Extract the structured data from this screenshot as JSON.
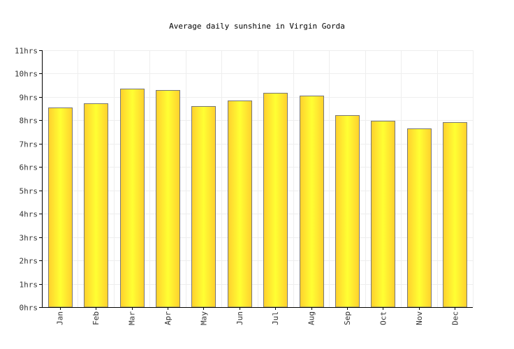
{
  "chart_data": {
    "type": "bar",
    "title": "Average daily sunshine in Virgin Gorda",
    "xlabel": "",
    "ylabel": "",
    "categories": [
      "Jan",
      "Feb",
      "Mar",
      "Apr",
      "May",
      "Jun",
      "Jul",
      "Aug",
      "Sep",
      "Oct",
      "Nov",
      "Dec"
    ],
    "series": [
      {
        "values": [
          8.55,
          8.72,
          9.35,
          9.3,
          8.6,
          8.85,
          9.18,
          9.05,
          8.22,
          7.98,
          7.65,
          7.92
        ]
      }
    ],
    "ylim": [
      0,
      11
    ],
    "yticks": [
      0,
      1,
      2,
      3,
      4,
      5,
      6,
      7,
      8,
      9,
      10,
      11
    ],
    "ytick_labels": [
      "0hrs",
      "1hrs",
      "2hrs",
      "3hrs",
      "4hrs",
      "5hrs",
      "6hrs",
      "7hrs",
      "8hrs",
      "9hrs",
      "10hrs",
      "11hrs"
    ],
    "grid": true,
    "legend": "none",
    "colors": {
      "bar_light": "#ffff33",
      "bar_dark": "#ffd02e",
      "bar_stroke": "#777777",
      "grid": "#eeeeee",
      "axis": "#000000"
    }
  }
}
